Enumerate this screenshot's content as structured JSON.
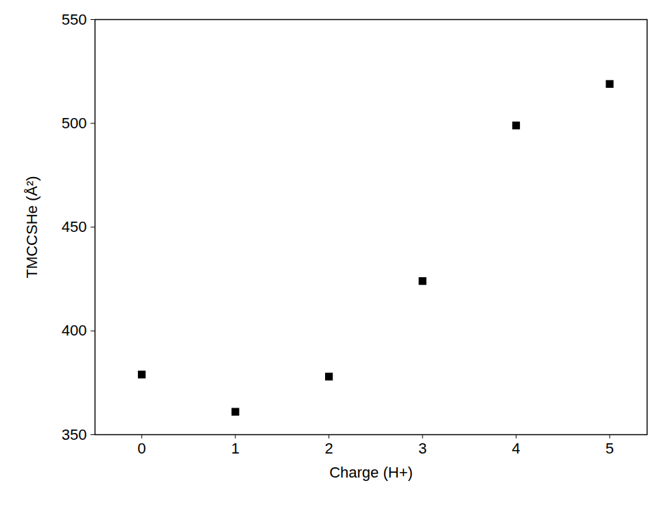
{
  "chart_data": {
    "type": "scatter",
    "x_label": "Charge (H+)",
    "y_label": "TMCCSHe (Å²)",
    "x": [
      0,
      1,
      2,
      3,
      4,
      5
    ],
    "values": [
      379,
      361,
      378,
      424,
      499,
      519
    ],
    "color": "#000000",
    "marker": "square",
    "xlim": [
      -0.5,
      5.4
    ],
    "xticks": [
      0,
      1,
      2,
      3,
      4,
      5
    ],
    "ylim": [
      350,
      550
    ],
    "yticks": [
      350,
      400,
      450,
      500,
      550
    ],
    "grid": false
  }
}
